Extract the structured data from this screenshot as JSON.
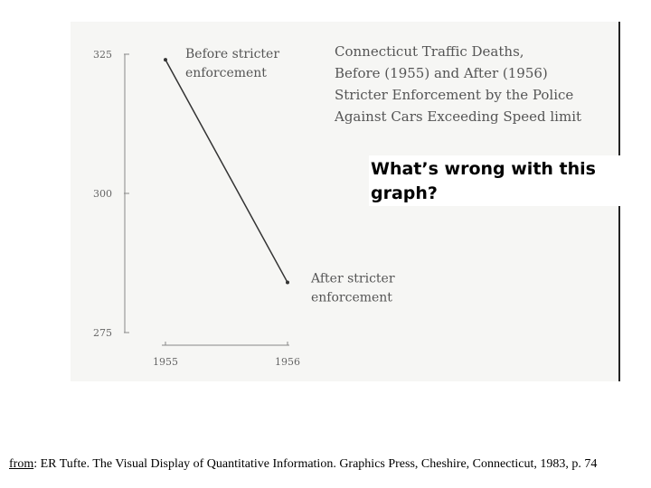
{
  "slide": {
    "question_line1": "What’s wrong with this",
    "question_line2": "graph?",
    "citation_from": "from",
    "citation_text": ": ER Tufte. The Visual Display of Quantitative Information. Graphics Press, Cheshire, Connecticut, 1983, p. 74"
  },
  "chart_data": {
    "type": "line",
    "title_lines": [
      "Connecticut Traffic Deaths,",
      "Before (1955) and After (1956)",
      "Stricter Enforcement by the Police",
      "Against Cars Exceeding Speed limit"
    ],
    "xlabel": "",
    "ylabel": "",
    "x": [
      "1955",
      "1956"
    ],
    "series": [
      {
        "values": [
          324,
          284
        ]
      }
    ],
    "ylim": [
      275,
      325
    ],
    "yticks": [
      325,
      300,
      275
    ],
    "point_labels": [
      [
        "Before stricter",
        "enforcement"
      ],
      [
        "After stricter",
        "enforcement"
      ]
    ],
    "grid": false,
    "legend": "none"
  }
}
